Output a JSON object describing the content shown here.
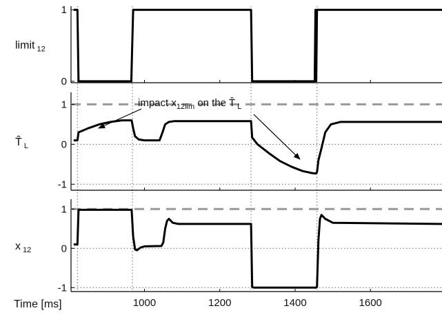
{
  "chart_data": {
    "type": "line",
    "xlabel": "Time [ms]",
    "x_ticks": [
      "1000",
      "1200",
      "1400",
      "1600"
    ],
    "x_tick_values": [
      1000,
      1200,
      1400,
      1600
    ],
    "xlim": [
      805,
      1790
    ],
    "vertical_guides": [
      822,
      968,
      1283,
      1458
    ],
    "annotation": {
      "text_before": "impact x",
      "text_sub": "12lim",
      "text_after": " on the ",
      "symbol": "T̂",
      "symbol_sub": "L"
    },
    "colors": {
      "signal": "#000000",
      "limit_line": "#999999",
      "grid": "#666666"
    },
    "panels": [
      {
        "name": "limit12",
        "ylabel": "limit",
        "ylabel_sub": "12",
        "ylim": [
          -0.02,
          1.05
        ],
        "y_ticks": [
          "0",
          "1"
        ],
        "y_tick_values": [
          0,
          1
        ],
        "grid_dotted": [],
        "dashed_ref": null,
        "series": [
          {
            "x": [
              812,
              822,
              825,
              965,
              970,
              1283,
              1286,
              1452,
              1454,
              1456,
              1458,
              1460,
              1790
            ],
            "y": [
              1,
              1,
              0,
              0,
              1,
              1,
              0,
              0,
              1,
              0,
              1,
              1,
              1
            ]
          }
        ]
      },
      {
        "name": "T_L_hat",
        "ylabel": "T̂",
        "ylabel_sub": "L",
        "ylim": [
          -1.15,
          1.3
        ],
        "y_ticks": [
          "-1",
          "0",
          "1"
        ],
        "y_tick_values": [
          -1,
          0,
          1
        ],
        "grid_dotted": [
          -1,
          0
        ],
        "dashed_ref": 1,
        "series": [
          {
            "x": [
              812,
              822,
              825,
              850,
              880,
              910,
              940,
              960,
              966,
              970,
              975,
              985,
              1000,
              1040,
              1048,
              1055,
              1065,
              1080,
              1280,
              1283,
              1286,
              1300,
              1330,
              1360,
              1390,
              1420,
              1445,
              1455,
              1458,
              1462,
              1470,
              1480,
              1495,
              1520,
              1790
            ],
            "y": [
              0.1,
              0.1,
              0.3,
              0.4,
              0.5,
              0.56,
              0.6,
              0.6,
              0.6,
              0.4,
              0.2,
              0.12,
              0.1,
              0.1,
              0.3,
              0.5,
              0.56,
              0.58,
              0.58,
              0.58,
              0.17,
              0.0,
              -0.22,
              -0.42,
              -0.56,
              -0.67,
              -0.72,
              -0.73,
              -0.7,
              -0.4,
              -0.1,
              0.3,
              0.5,
              0.56,
              0.56
            ]
          }
        ]
      },
      {
        "name": "x12",
        "ylabel": "x",
        "ylabel_sub": "12",
        "ylim": [
          -1.1,
          1.25
        ],
        "y_ticks": [
          "-1",
          "0",
          "1"
        ],
        "y_tick_values": [
          -1,
          0,
          1
        ],
        "grid_dotted": [
          -1,
          0
        ],
        "dashed_ref": 1,
        "series": [
          {
            "x": [
              812,
              822,
              825,
              830,
              960,
              966,
              970,
              975,
              980,
              990,
              1000,
              1045,
              1050,
              1055,
              1060,
              1065,
              1075,
              1090,
              1280,
              1283,
              1286,
              1290,
              1455,
              1458,
              1462,
              1466,
              1470,
              1480,
              1500,
              1790
            ],
            "y": [
              0.1,
              0.1,
              0.98,
              0.98,
              0.98,
              0.98,
              0.3,
              -0.03,
              -0.05,
              0.02,
              0.05,
              0.06,
              0.15,
              0.5,
              0.7,
              0.75,
              0.65,
              0.62,
              0.62,
              0.62,
              -0.98,
              -1.0,
              -1.0,
              -0.98,
              0.2,
              0.75,
              0.85,
              0.75,
              0.65,
              0.62
            ]
          }
        ]
      }
    ]
  }
}
